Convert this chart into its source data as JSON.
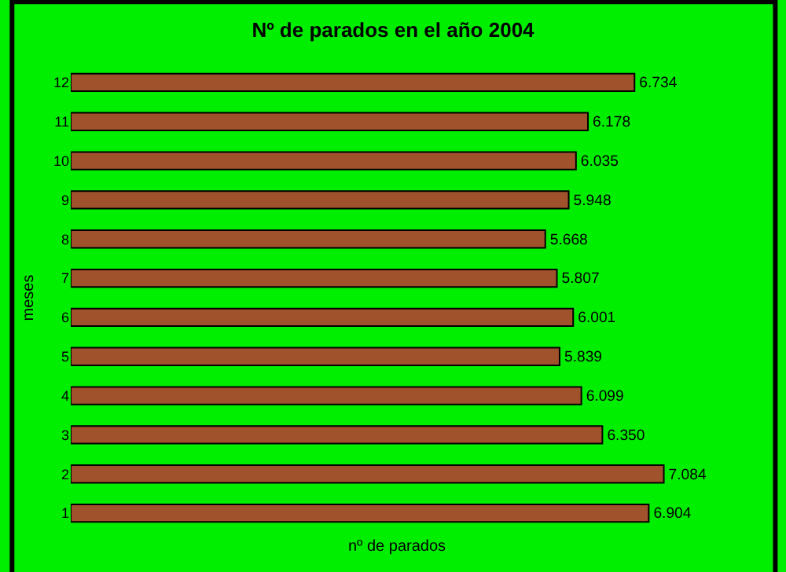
{
  "chart_data": {
    "type": "bar",
    "orientation": "horizontal",
    "title": "Nº de parados en el año 2004",
    "xlabel": "nº de parados",
    "ylabel": "meses",
    "categories": [
      "12",
      "11",
      "10",
      "9",
      "8",
      "7",
      "6",
      "5",
      "4",
      "3",
      "2",
      "1"
    ],
    "values": [
      6.734,
      6.178,
      6.035,
      5.948,
      5.668,
      5.807,
      6.001,
      5.839,
      6.099,
      6.35,
      7.084,
      6.904
    ],
    "value_labels": [
      "6.734",
      "6.178",
      "6.035",
      "5.948",
      "5.668",
      "5.807",
      "6.001",
      "5.839",
      "6.099",
      "6.350",
      "7.084",
      "6.904"
    ],
    "color": "#a0522d",
    "tick_labels": "y",
    "grid": false
  }
}
